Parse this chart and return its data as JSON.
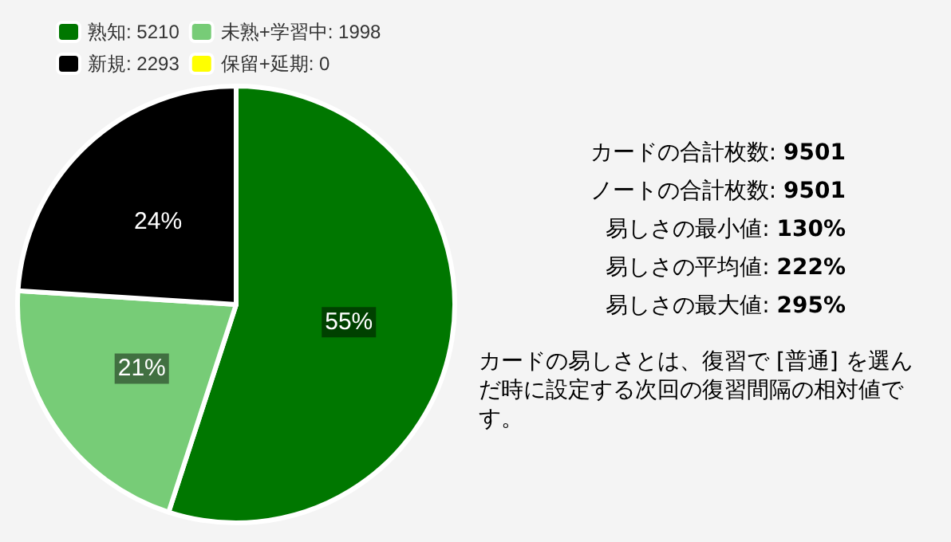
{
  "chart_data": {
    "type": "pie",
    "categories": [
      "熟知: 5210",
      "未熟+学習中: 1998",
      "新規: 2293",
      "保留+延期: 0"
    ],
    "values": [
      55,
      21,
      24,
      0
    ],
    "colors": [
      "#007700",
      "#77cc77",
      "#000000",
      "#ffff00"
    ],
    "value_labels": [
      "55%",
      "21%",
      "24%",
      null
    ],
    "legend": "top left",
    "annotations": [
      "カードの合計枚数: 9501",
      "ノートの合計枚数: 9501",
      "易しさの最小値: 130%",
      "易しさの平均値: 222%",
      "易しさの最大値: 295%",
      "カードの易しさとは、復習で [普通] を選んだ時に設定する次回の復習間隔の相対値です。"
    ]
  }
}
